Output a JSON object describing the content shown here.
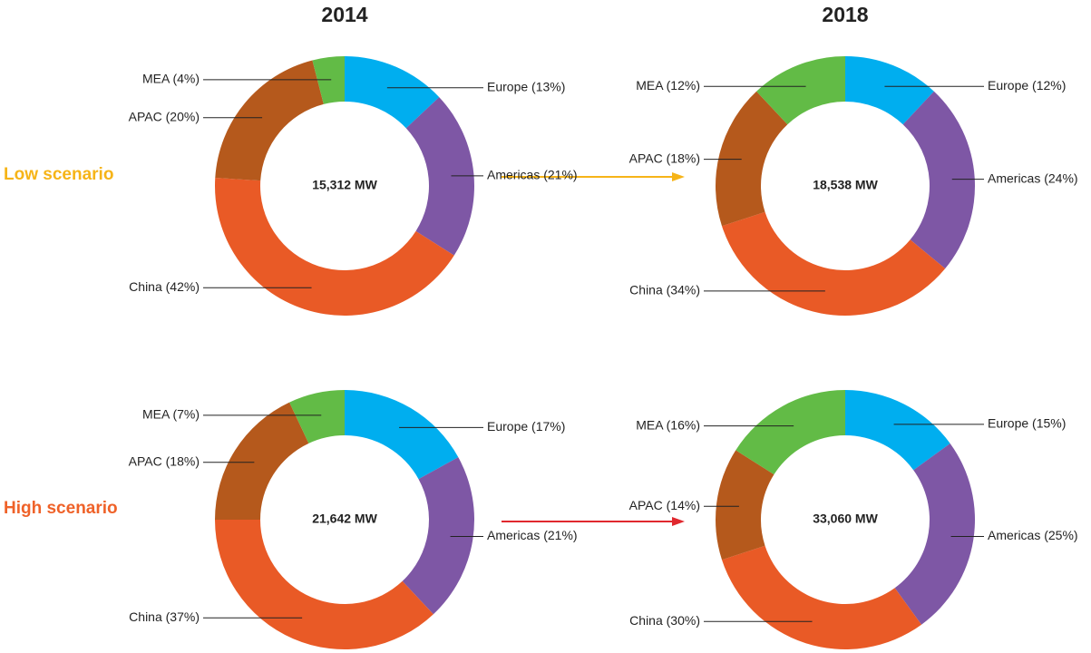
{
  "columns": [
    "2014",
    "2018"
  ],
  "rows": [
    {
      "label": "Low scenario",
      "color": "#f6b418",
      "arrow_color": "#f6b418"
    },
    {
      "label": "High scenario",
      "color": "#ef6229",
      "arrow_color": "#e0282e"
    }
  ],
  "chart_data": [
    {
      "type": "pie",
      "values": [
        13,
        21,
        42,
        20,
        4
      ],
      "value_labels": [
        "Europe (13%)",
        "Americas (21%)",
        "China (42%)",
        "APAC (20%)",
        "MEA (4%)"
      ],
      "colors": [
        "#00aeef",
        "#7e57a5",
        "#e95a26",
        "#b5591c",
        "#62bb46"
      ],
      "center_label": "15,312 MW"
    },
    {
      "type": "pie",
      "values": [
        12,
        24,
        34,
        18,
        12
      ],
      "value_labels": [
        "Europe (12%)",
        "Americas (24%)",
        "China (34%)",
        "APAC (18%)",
        "MEA (12%)"
      ],
      "colors": [
        "#00aeef",
        "#7e57a5",
        "#e95a26",
        "#b5591c",
        "#62bb46"
      ],
      "center_label": "18,538 MW"
    },
    {
      "type": "pie",
      "values": [
        17,
        21,
        37,
        18,
        7
      ],
      "value_labels": [
        "Europe (17%)",
        "Americas (21%)",
        "China (37%)",
        "APAC (18%)",
        "MEA (7%)"
      ],
      "colors": [
        "#00aeef",
        "#7e57a5",
        "#e95a26",
        "#b5591c",
        "#62bb46"
      ],
      "center_label": "21,642 MW"
    },
    {
      "type": "pie",
      "values": [
        15,
        25,
        30,
        14,
        16
      ],
      "value_labels": [
        "Europe (15%)",
        "Americas (25%)",
        "China (30%)",
        "APAC (14%)",
        "MEA (16%)"
      ],
      "colors": [
        "#00aeef",
        "#7e57a5",
        "#e95a26",
        "#b5591c",
        "#62bb46"
      ],
      "center_label": "33,060 MW"
    }
  ]
}
